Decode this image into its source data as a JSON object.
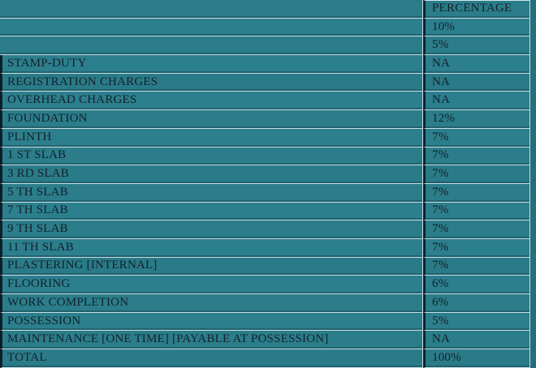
{
  "table": {
    "columns": [
      "",
      "PERCENTAGE"
    ],
    "rows": [
      {
        "label": "",
        "value": "PERCENTAGE",
        "header": true
      },
      {
        "label": "",
        "value": "10%"
      },
      {
        "label": "",
        "value": "5%"
      },
      {
        "label": "STAMP-DUTY",
        "value": "NA"
      },
      {
        "label": "REGISTRATION CHARGES",
        "value": "NA"
      },
      {
        "label": "OVERHEAD CHARGES",
        "value": "NA"
      },
      {
        "label": "FOUNDATION",
        "value": "12%"
      },
      {
        "label": "PLINTH",
        "value": "7%"
      },
      {
        "label": "1 ST SLAB",
        "value": "7%"
      },
      {
        "label": "3 RD SLAB",
        "value": "7%"
      },
      {
        "label": "5 TH SLAB",
        "value": "7%"
      },
      {
        "label": "7 TH SLAB",
        "value": "7%"
      },
      {
        "label": "9 TH SLAB",
        "value": "7%"
      },
      {
        "label": "11 TH SLAB",
        "value": "7%"
      },
      {
        "label": "PLASTERING [INTERNAL]",
        "value": "7%"
      },
      {
        "label": "FLOORING",
        "value": "6%"
      },
      {
        "label": "WORK COMPLETION",
        "value": "6%"
      },
      {
        "label": "POSSESSION",
        "value": "5%"
      },
      {
        "label": "MAINTENANCE [ONE TIME] [PAYABLE AT POSSESSION]",
        "value": "NA"
      },
      {
        "label": "TOTAL",
        "value": "100%"
      }
    ]
  },
  "colors": {
    "background_teal": "#2b7d8a",
    "grid_light": "#c9dee2",
    "grid_dark": "#0d222d",
    "left_border_dark": "#0c1f28",
    "text": "#13212b",
    "right_edge_strip": "#256e7b"
  }
}
